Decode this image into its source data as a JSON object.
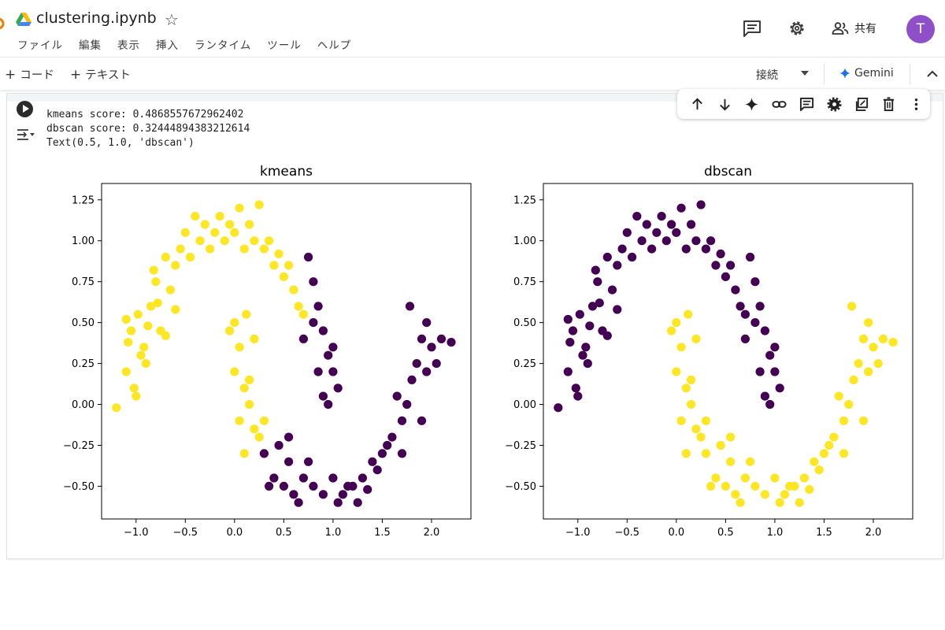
{
  "header": {
    "title": "clustering.ipynb",
    "menu": [
      "ファイル",
      "編集",
      "表示",
      "挿入",
      "ランタイム",
      "ツール",
      "ヘルプ"
    ],
    "share_label": "共有",
    "avatar_letter": "T"
  },
  "toolbar": {
    "add_code": "コード",
    "add_text": "テキスト",
    "connect_label": "接続",
    "gemini_label": "Gemini"
  },
  "cell": {
    "output_lines": [
      "kmeans score: 0.4868557672962402",
      "dbscan score: 0.32444894383212614",
      "Text(0.5, 1.0, 'dbscan')"
    ],
    "toolbar_icons": [
      "arrow-up-icon",
      "arrow-down-icon",
      "sparkle-icon",
      "link-icon",
      "comment-icon",
      "gear-icon",
      "mirror-cell-icon",
      "trash-icon",
      "more-vert-icon"
    ]
  },
  "colors": {
    "cluster_a": "#fde725",
    "cluster_b": "#440154",
    "accent": "#1a73e8"
  },
  "chart_data": [
    {
      "type": "scatter",
      "title": "kmeans",
      "xlim": [
        -1.35,
        2.4
      ],
      "ylim": [
        -0.7,
        1.35
      ],
      "xticks": [
        "−1.0",
        "−0.5",
        "0.0",
        "0.5",
        "1.0",
        "1.5",
        "2.0"
      ],
      "xtick_values": [
        -1.0,
        -0.5,
        0.0,
        0.5,
        1.0,
        1.5,
        2.0
      ],
      "yticks": [
        "−0.50",
        "−0.25",
        "0.00",
        "0.25",
        "0.50",
        "0.75",
        "1.00",
        "1.25"
      ],
      "ytick_values": [
        -0.5,
        -0.25,
        0.0,
        0.25,
        0.5,
        0.75,
        1.0,
        1.25
      ],
      "series": [
        {
          "color": "#fde725",
          "points": [
            [
              -1.2,
              -0.02
            ],
            [
              -1.1,
              0.2
            ],
            [
              -1.05,
              0.45
            ],
            [
              -1.08,
              0.38
            ],
            [
              -0.98,
              0.55
            ],
            [
              -0.95,
              0.3
            ],
            [
              -1.02,
              0.1
            ],
            [
              -0.9,
              0.25
            ],
            [
              -0.85,
              0.6
            ],
            [
              -0.8,
              0.75
            ],
            [
              -0.75,
              0.45
            ],
            [
              -0.7,
              0.9
            ],
            [
              -0.65,
              0.7
            ],
            [
              -0.6,
              0.85
            ],
            [
              -0.55,
              0.95
            ],
            [
              -0.5,
              1.05
            ],
            [
              -0.45,
              0.9
            ],
            [
              -0.4,
              1.15
            ],
            [
              -0.35,
              1.0
            ],
            [
              -0.3,
              1.1
            ],
            [
              -0.25,
              0.95
            ],
            [
              -0.2,
              1.05
            ],
            [
              -0.15,
              1.15
            ],
            [
              -0.1,
              1.0
            ],
            [
              -0.05,
              1.1
            ],
            [
              0.0,
              1.05
            ],
            [
              0.05,
              1.2
            ],
            [
              0.1,
              0.95
            ],
            [
              0.15,
              1.1
            ],
            [
              0.2,
              1.0
            ],
            [
              0.25,
              1.22
            ],
            [
              0.3,
              0.95
            ],
            [
              0.35,
              1.0
            ],
            [
              0.4,
              0.85
            ],
            [
              0.45,
              0.92
            ],
            [
              0.5,
              0.78
            ],
            [
              0.55,
              0.85
            ],
            [
              0.6,
              0.7
            ],
            [
              0.65,
              0.6
            ],
            [
              -1.0,
              0.05
            ],
            [
              -0.92,
              0.35
            ],
            [
              -0.88,
              0.48
            ],
            [
              -0.78,
              0.62
            ],
            [
              -1.1,
              0.52
            ],
            [
              -0.7,
              0.42
            ],
            [
              -0.82,
              0.82
            ],
            [
              -0.6,
              0.58
            ],
            [
              0.7,
              0.55
            ],
            [
              0.0,
              0.2
            ],
            [
              -0.05,
              0.45
            ],
            [
              0.05,
              0.35
            ],
            [
              0.1,
              0.1
            ],
            [
              0.15,
              0.0
            ],
            [
              0.05,
              -0.1
            ],
            [
              0.2,
              -0.15
            ],
            [
              0.25,
              -0.2
            ],
            [
              0.1,
              -0.3
            ],
            [
              0.2,
              0.4
            ],
            [
              0.0,
              0.5
            ],
            [
              0.15,
              0.15
            ],
            [
              0.3,
              -0.1
            ],
            [
              0.12,
              0.55
            ]
          ]
        },
        {
          "color": "#440154",
          "points": [
            [
              0.75,
              0.9
            ],
            [
              0.8,
              0.75
            ],
            [
              0.85,
              0.6
            ],
            [
              0.9,
              0.45
            ],
            [
              0.95,
              0.3
            ],
            [
              1.0,
              0.2
            ],
            [
              0.85,
              0.2
            ],
            [
              0.9,
              0.05
            ],
            [
              1.0,
              0.35
            ],
            [
              0.8,
              0.5
            ],
            [
              0.7,
              0.4
            ],
            [
              1.05,
              0.1
            ],
            [
              0.95,
              0.0
            ],
            [
              0.3,
              -0.3
            ],
            [
              0.4,
              -0.45
            ],
            [
              0.5,
              -0.5
            ],
            [
              0.55,
              -0.35
            ],
            [
              0.6,
              -0.55
            ],
            [
              0.7,
              -0.45
            ],
            [
              0.8,
              -0.5
            ],
            [
              0.9,
              -0.55
            ],
            [
              1.0,
              -0.45
            ],
            [
              1.1,
              -0.55
            ],
            [
              1.2,
              -0.5
            ],
            [
              1.3,
              -0.45
            ],
            [
              1.4,
              -0.35
            ],
            [
              1.5,
              -0.3
            ],
            [
              1.6,
              -0.2
            ],
            [
              1.7,
              -0.1
            ],
            [
              1.75,
              0.0
            ],
            [
              1.8,
              0.15
            ],
            [
              1.85,
              0.25
            ],
            [
              1.9,
              0.4
            ],
            [
              1.95,
              0.5
            ],
            [
              2.0,
              0.35
            ],
            [
              2.1,
              0.4
            ],
            [
              2.2,
              0.38
            ],
            [
              1.65,
              0.05
            ],
            [
              1.55,
              -0.25
            ],
            [
              1.45,
              -0.4
            ],
            [
              1.35,
              -0.52
            ],
            [
              1.25,
              -0.6
            ],
            [
              1.15,
              -0.5
            ],
            [
              1.05,
              -0.6
            ],
            [
              0.65,
              -0.6
            ],
            [
              0.45,
              -0.25
            ],
            [
              1.78,
              0.6
            ],
            [
              1.95,
              0.2
            ],
            [
              2.05,
              0.25
            ],
            [
              1.9,
              -0.1
            ],
            [
              1.7,
              -0.3
            ],
            [
              0.35,
              -0.5
            ],
            [
              0.55,
              -0.2
            ],
            [
              0.75,
              -0.35
            ]
          ]
        }
      ]
    },
    {
      "type": "scatter",
      "title": "dbscan",
      "xlim": [
        -1.35,
        2.4
      ],
      "ylim": [
        -0.7,
        1.35
      ],
      "xticks": [
        "−1.0",
        "−0.5",
        "0.0",
        "0.5",
        "1.0",
        "1.5",
        "2.0"
      ],
      "xtick_values": [
        -1.0,
        -0.5,
        0.0,
        0.5,
        1.0,
        1.5,
        2.0
      ],
      "yticks": [
        "−0.50",
        "−0.25",
        "0.00",
        "0.25",
        "0.50",
        "0.75",
        "1.00",
        "1.25"
      ],
      "ytick_values": [
        -0.5,
        -0.25,
        0.0,
        0.25,
        0.5,
        0.75,
        1.0,
        1.25
      ],
      "series": [
        {
          "color": "#440154",
          "points": [
            [
              -1.2,
              -0.02
            ],
            [
              -1.1,
              0.2
            ],
            [
              -1.05,
              0.45
            ],
            [
              -1.08,
              0.38
            ],
            [
              -0.98,
              0.55
            ],
            [
              -0.95,
              0.3
            ],
            [
              -1.02,
              0.1
            ],
            [
              -0.9,
              0.25
            ],
            [
              -0.85,
              0.6
            ],
            [
              -0.8,
              0.75
            ],
            [
              -0.75,
              0.45
            ],
            [
              -0.7,
              0.9
            ],
            [
              -0.65,
              0.7
            ],
            [
              -0.6,
              0.85
            ],
            [
              -0.55,
              0.95
            ],
            [
              -0.5,
              1.05
            ],
            [
              -0.45,
              0.9
            ],
            [
              -0.4,
              1.15
            ],
            [
              -0.35,
              1.0
            ],
            [
              -0.3,
              1.1
            ],
            [
              -0.25,
              0.95
            ],
            [
              -0.2,
              1.05
            ],
            [
              -0.15,
              1.15
            ],
            [
              -0.1,
              1.0
            ],
            [
              -0.05,
              1.1
            ],
            [
              0.0,
              1.05
            ],
            [
              0.05,
              1.2
            ],
            [
              0.1,
              0.95
            ],
            [
              0.15,
              1.1
            ],
            [
              0.2,
              1.0
            ],
            [
              0.25,
              1.22
            ],
            [
              0.3,
              0.95
            ],
            [
              0.35,
              1.0
            ],
            [
              0.4,
              0.85
            ],
            [
              0.45,
              0.92
            ],
            [
              0.5,
              0.78
            ],
            [
              0.55,
              0.85
            ],
            [
              0.6,
              0.7
            ],
            [
              0.65,
              0.6
            ],
            [
              -1.0,
              0.05
            ],
            [
              -0.92,
              0.35
            ],
            [
              -0.88,
              0.48
            ],
            [
              -0.78,
              0.62
            ],
            [
              -1.1,
              0.52
            ],
            [
              -0.7,
              0.42
            ],
            [
              -0.82,
              0.82
            ],
            [
              -0.6,
              0.58
            ],
            [
              0.7,
              0.55
            ],
            [
              0.75,
              0.9
            ],
            [
              0.8,
              0.75
            ],
            [
              0.85,
              0.6
            ],
            [
              0.9,
              0.45
            ],
            [
              0.95,
              0.3
            ],
            [
              1.0,
              0.2
            ],
            [
              0.85,
              0.2
            ],
            [
              0.9,
              0.05
            ],
            [
              1.0,
              0.35
            ],
            [
              0.8,
              0.5
            ],
            [
              0.7,
              0.4
            ],
            [
              1.05,
              0.1
            ],
            [
              0.95,
              0.0
            ]
          ]
        },
        {
          "color": "#fde725",
          "points": [
            [
              0.0,
              0.2
            ],
            [
              -0.05,
              0.45
            ],
            [
              0.05,
              0.35
            ],
            [
              0.1,
              0.1
            ],
            [
              0.15,
              0.0
            ],
            [
              0.05,
              -0.1
            ],
            [
              0.2,
              -0.15
            ],
            [
              0.25,
              -0.2
            ],
            [
              0.1,
              -0.3
            ],
            [
              0.2,
              0.4
            ],
            [
              0.0,
              0.5
            ],
            [
              0.15,
              0.15
            ],
            [
              0.3,
              -0.1
            ],
            [
              0.12,
              0.55
            ],
            [
              0.3,
              -0.3
            ],
            [
              0.4,
              -0.45
            ],
            [
              0.5,
              -0.5
            ],
            [
              0.55,
              -0.35
            ],
            [
              0.6,
              -0.55
            ],
            [
              0.7,
              -0.45
            ],
            [
              0.8,
              -0.5
            ],
            [
              0.9,
              -0.55
            ],
            [
              1.0,
              -0.45
            ],
            [
              1.1,
              -0.55
            ],
            [
              1.2,
              -0.5
            ],
            [
              1.3,
              -0.45
            ],
            [
              1.4,
              -0.35
            ],
            [
              1.5,
              -0.3
            ],
            [
              1.6,
              -0.2
            ],
            [
              1.7,
              -0.1
            ],
            [
              1.75,
              0.0
            ],
            [
              1.8,
              0.15
            ],
            [
              1.85,
              0.25
            ],
            [
              1.9,
              0.4
            ],
            [
              1.95,
              0.5
            ],
            [
              2.0,
              0.35
            ],
            [
              2.1,
              0.4
            ],
            [
              2.2,
              0.38
            ],
            [
              1.65,
              0.05
            ],
            [
              1.55,
              -0.25
            ],
            [
              1.45,
              -0.4
            ],
            [
              1.35,
              -0.52
            ],
            [
              1.25,
              -0.6
            ],
            [
              1.15,
              -0.5
            ],
            [
              1.05,
              -0.6
            ],
            [
              0.65,
              -0.6
            ],
            [
              0.45,
              -0.25
            ],
            [
              1.78,
              0.6
            ],
            [
              1.95,
              0.2
            ],
            [
              2.05,
              0.25
            ],
            [
              1.9,
              -0.1
            ],
            [
              1.7,
              -0.3
            ],
            [
              0.35,
              -0.5
            ],
            [
              0.55,
              -0.2
            ],
            [
              0.75,
              -0.35
            ]
          ]
        }
      ]
    }
  ]
}
